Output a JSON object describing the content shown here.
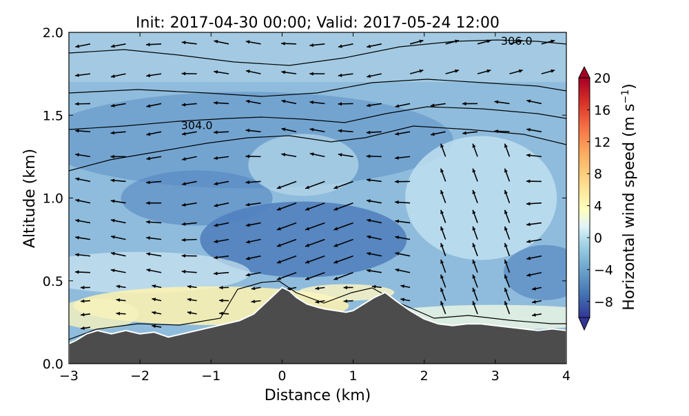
{
  "chart_data": {
    "type": "heatmap",
    "title": "Init: 2017-04-30 00:00; Valid: 2017-05-24 12:00",
    "xlabel": "Distance (km)",
    "ylabel": "Altitude (km)",
    "xlim": [
      -3,
      4
    ],
    "ylim": [
      0,
      2
    ],
    "x_ticks": [
      -3,
      -2,
      -1,
      0,
      1,
      2,
      3,
      4
    ],
    "x_tick_labels": [
      "−3",
      "−2",
      "−1",
      "0",
      "1",
      "2",
      "3",
      "4"
    ],
    "y_ticks": [
      0.0,
      0.5,
      1.0,
      1.5,
      2.0
    ],
    "y_tick_labels": [
      "0.0",
      "0.5",
      "1.0",
      "1.5",
      "2.0"
    ],
    "colorbar": {
      "label_main": "Horizontal wind speed (m s",
      "label_exp": "−1",
      "label_close": ")",
      "range": [
        -10,
        20
      ],
      "ticks": [
        -8,
        -4,
        0,
        4,
        8,
        12,
        16,
        20
      ],
      "tick_labels": [
        "−8",
        "−4",
        "0",
        "4",
        "8",
        "12",
        "16",
        "20"
      ]
    },
    "terrain": {
      "x": [
        -3.0,
        -2.9,
        -2.75,
        -2.6,
        -2.4,
        -2.2,
        -2.0,
        -1.8,
        -1.6,
        -1.4,
        -1.2,
        -1.0,
        -0.8,
        -0.6,
        -0.4,
        -0.2,
        0.0,
        0.1,
        0.2,
        0.35,
        0.5,
        0.6,
        0.75,
        0.9,
        1.0,
        1.15,
        1.3,
        1.45,
        1.6,
        1.8,
        2.0,
        2.2,
        2.4,
        2.6,
        2.8,
        3.0,
        3.2,
        3.4,
        3.6,
        3.8,
        4.0
      ],
      "height": [
        0.12,
        0.14,
        0.18,
        0.2,
        0.18,
        0.2,
        0.18,
        0.19,
        0.16,
        0.18,
        0.2,
        0.22,
        0.24,
        0.26,
        0.3,
        0.38,
        0.46,
        0.44,
        0.4,
        0.36,
        0.34,
        0.33,
        0.32,
        0.31,
        0.32,
        0.36,
        0.4,
        0.43,
        0.38,
        0.32,
        0.27,
        0.24,
        0.23,
        0.24,
        0.24,
        0.23,
        0.22,
        0.21,
        0.2,
        0.21,
        0.2
      ]
    },
    "contour_labels": [
      {
        "text": "304.0",
        "x": -1.2,
        "y": 1.44
      },
      {
        "text": "306.0",
        "x": 3.3,
        "y": 1.95
      }
    ],
    "wind_levels": [
      0.22,
      0.3,
      0.38,
      0.46,
      0.55,
      0.65,
      0.75,
      0.85,
      0.97,
      1.1,
      1.25,
      1.4,
      1.57,
      1.75,
      1.93
    ],
    "wind_columns": [
      -2.7,
      -2.2,
      -1.7,
      -1.2,
      -0.75,
      -0.3,
      0.2,
      0.6,
      1.0,
      1.4,
      1.8,
      2.3,
      2.75,
      3.2,
      3.65
    ]
  }
}
